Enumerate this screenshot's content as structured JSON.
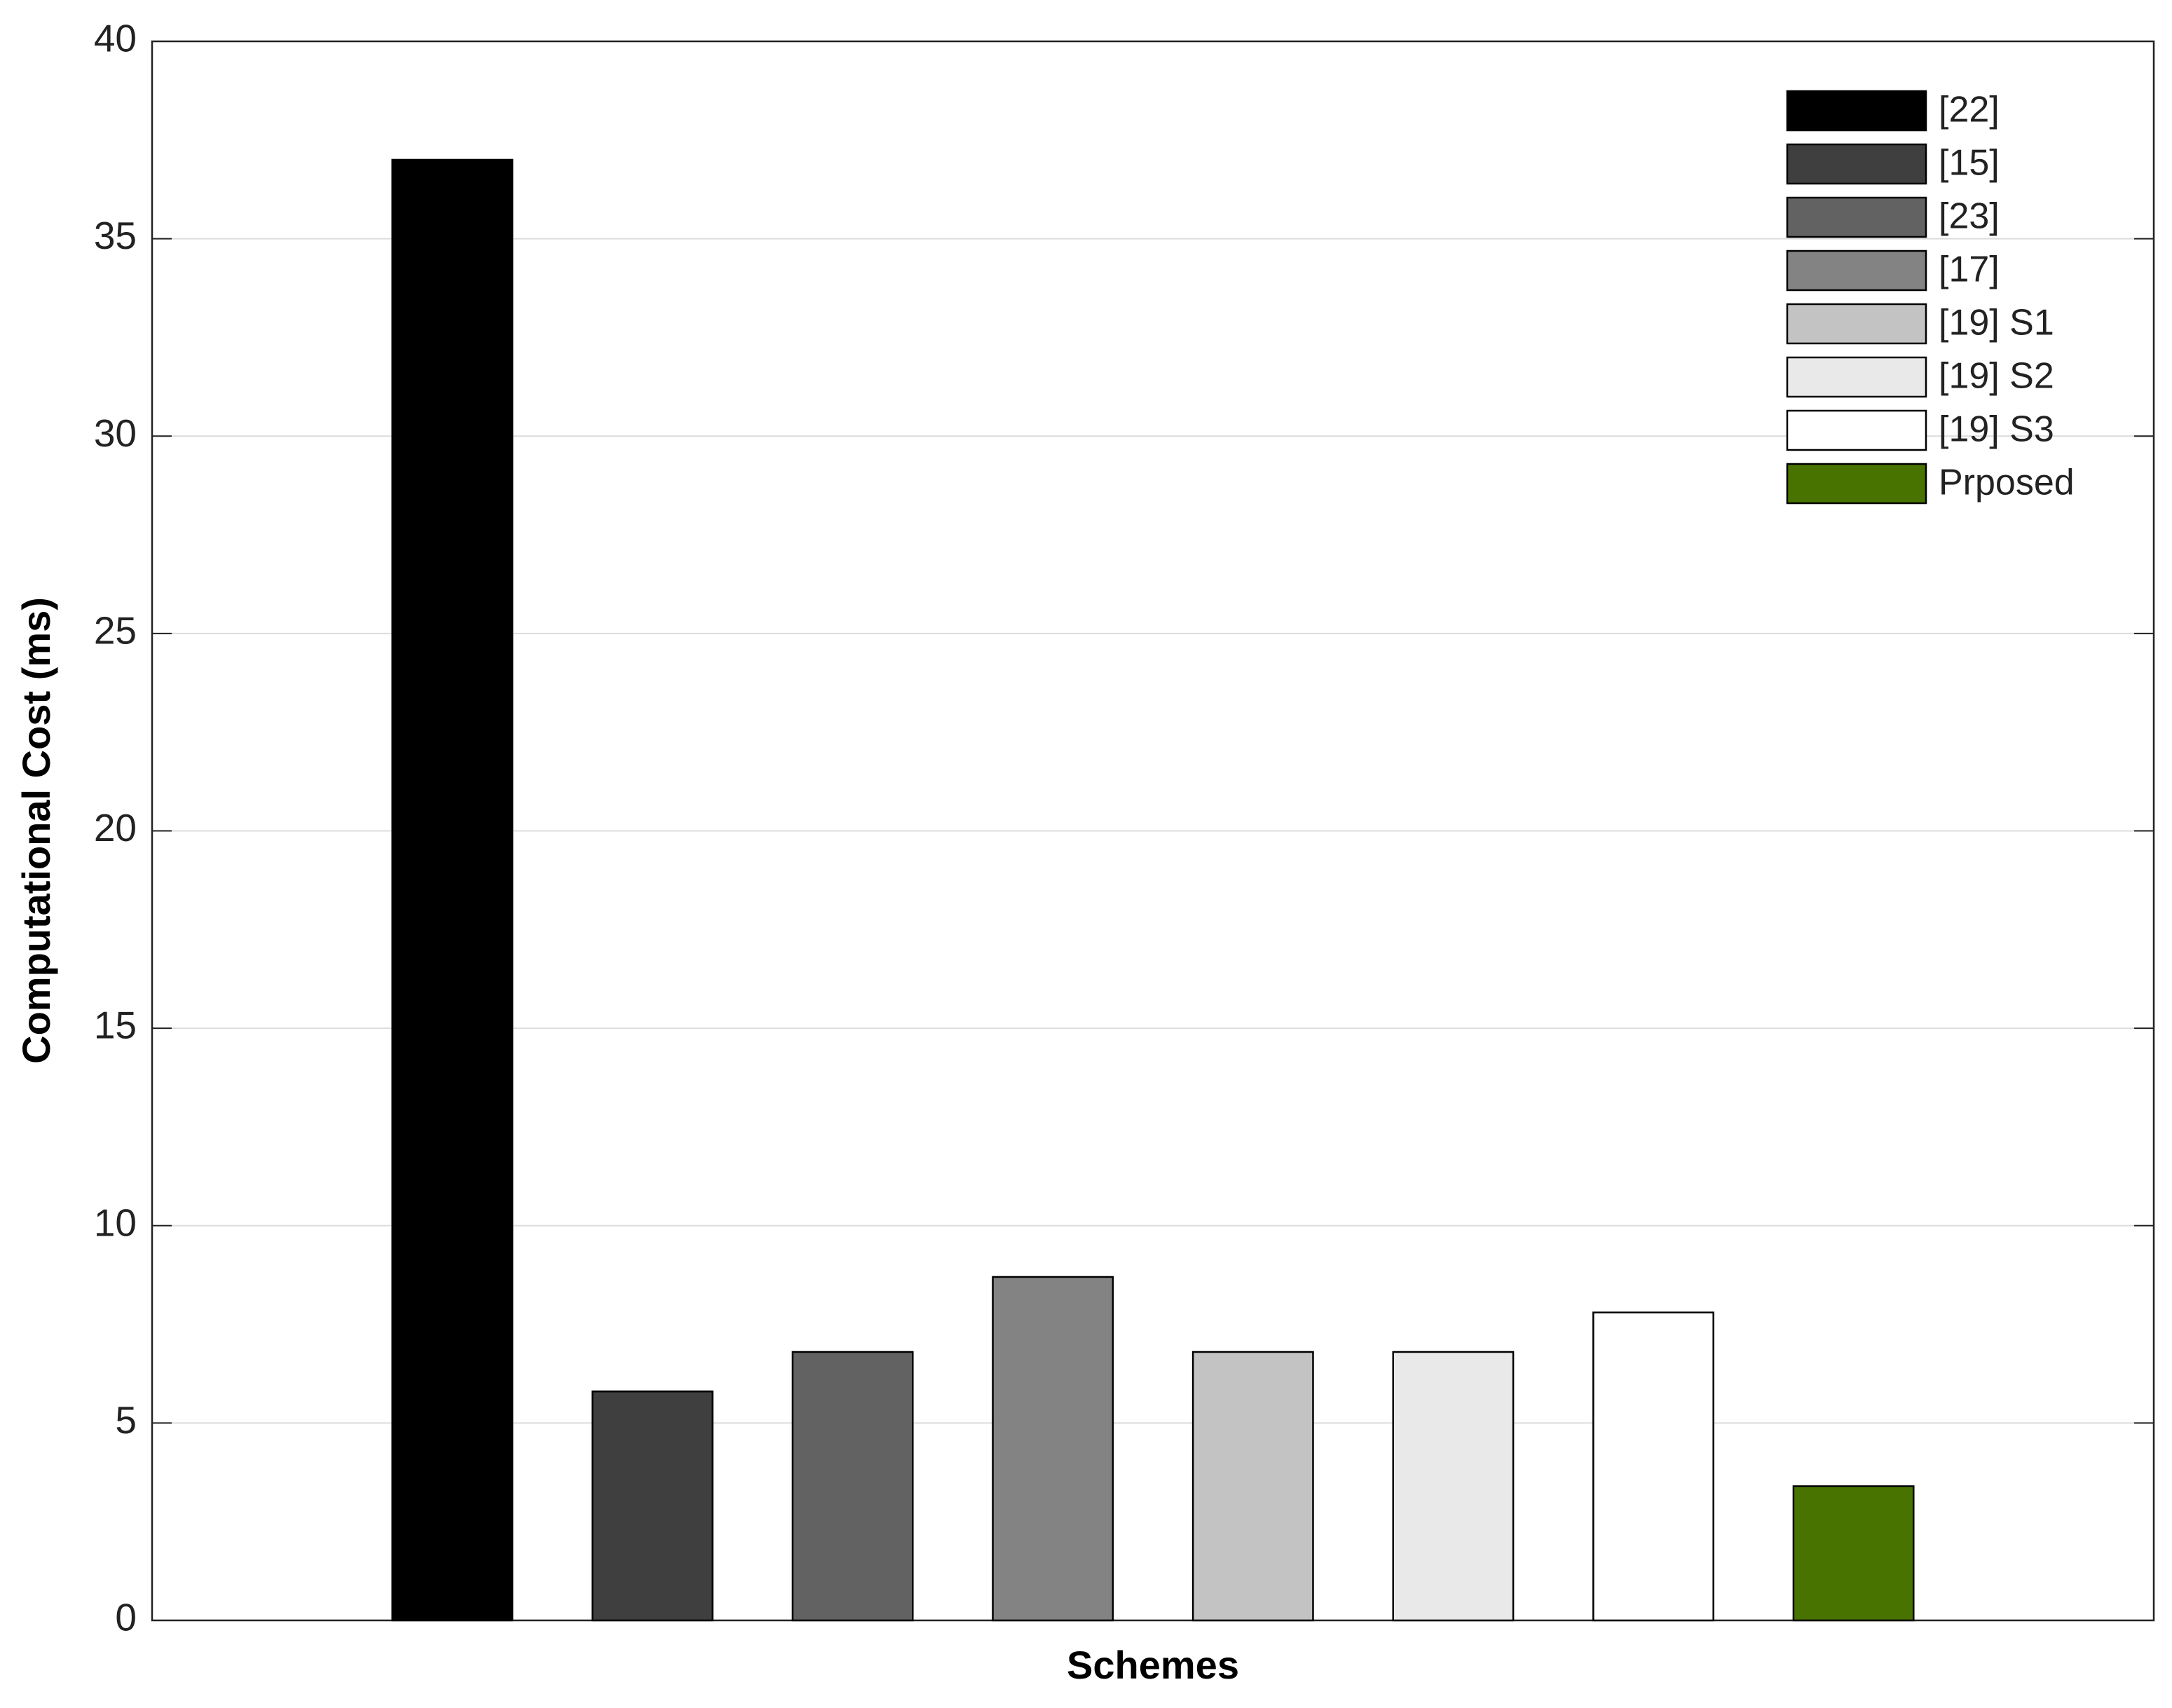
{
  "chart_data": {
    "type": "bar",
    "xlabel": "Schemes",
    "ylabel": "Computational Cost (ms)",
    "series": [
      {
        "name": "[22]",
        "color": "#000000",
        "values": [
          37
        ]
      },
      {
        "name": "[15]",
        "color": "#3f3f3f",
        "values": [
          5.8
        ]
      },
      {
        "name": "[23]",
        "color": "#626262",
        "values": [
          6.8
        ]
      },
      {
        "name": "[17]",
        "color": "#838383",
        "values": [
          8.7
        ]
      },
      {
        "name": "[19] S1",
        "color": "#c3c3c3",
        "values": [
          6.8
        ]
      },
      {
        "name": "[19] S2",
        "color": "#e9e9e9",
        "values": [
          6.8
        ]
      },
      {
        "name": "[19] S3",
        "color": "#ffffff",
        "values": [
          7.8
        ]
      },
      {
        "name": "Prposed",
        "color": "#487300",
        "values": [
          3.4
        ]
      }
    ],
    "ylim": [
      0,
      40
    ],
    "yticks": [
      0,
      5,
      10,
      15,
      20,
      25,
      30,
      35,
      40
    ],
    "grid": true,
    "legend": "upper right"
  }
}
